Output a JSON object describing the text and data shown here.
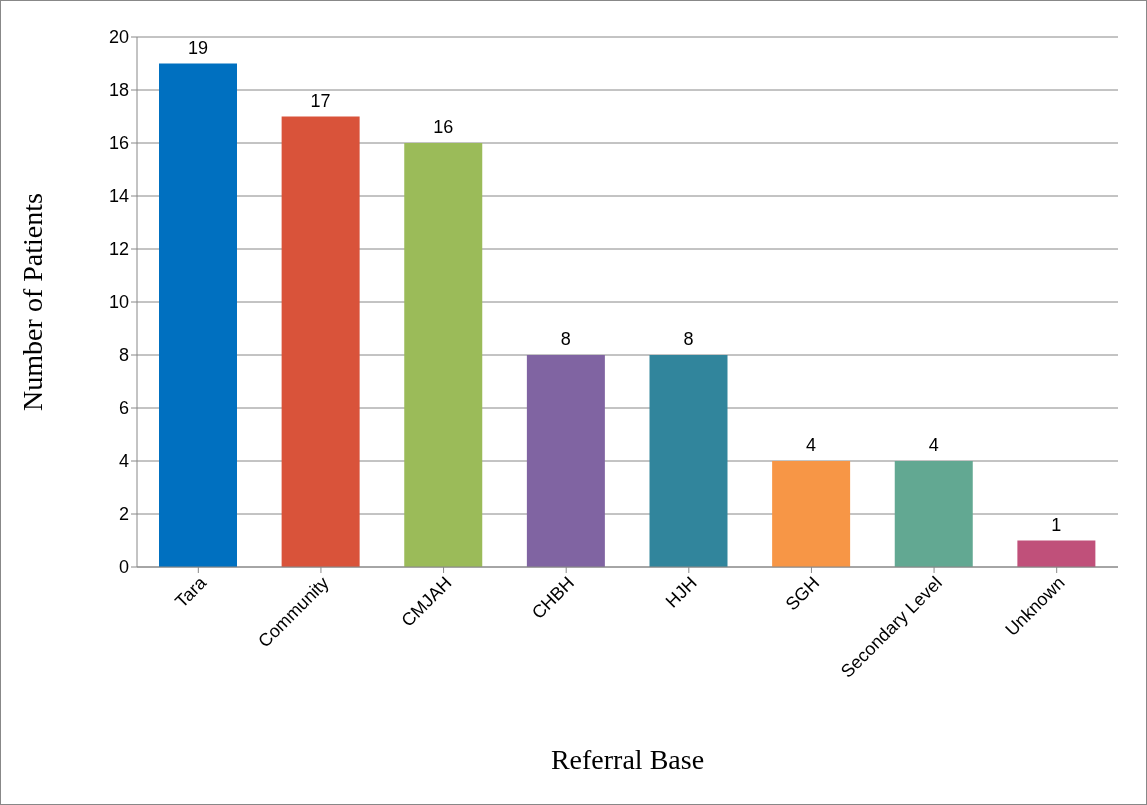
{
  "chart_data": {
    "type": "bar",
    "xlabel": "Referral Base",
    "ylabel": "Number of Patients",
    "categories": [
      "Tara",
      "Community",
      "CMJAH",
      "CHBH",
      "HJH",
      "SGH",
      "Secondary Level",
      "Unknown"
    ],
    "values": [
      19,
      17,
      16,
      8,
      8,
      4,
      4,
      1
    ],
    "colors": [
      "#0070c0",
      "#d9533a",
      "#9bbb59",
      "#8064a2",
      "#31859c",
      "#f79646",
      "#62a892",
      "#c0507a"
    ],
    "ylim": [
      0,
      20
    ],
    "yticks": [
      0,
      2,
      4,
      6,
      8,
      10,
      12,
      14,
      16,
      18,
      20
    ],
    "grid": "y",
    "data_labels": true,
    "legend": false
  }
}
